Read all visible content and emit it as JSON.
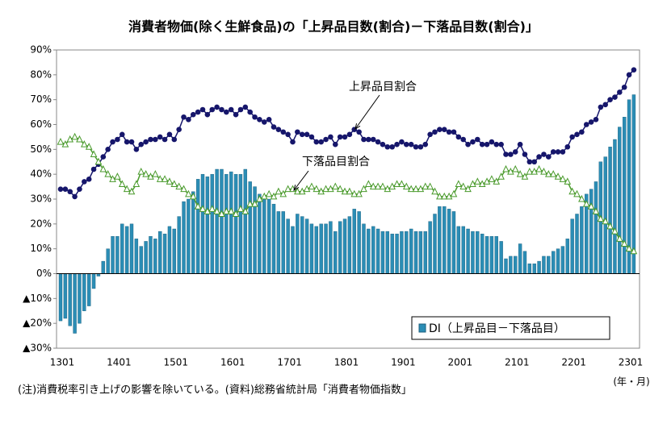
{
  "chart_data": {
    "type": "bar",
    "title": "消費者物価(除く生鮮食品)の「上昇品目数(割合)－下落品目数(割合)」",
    "x_label": "(年・月)",
    "note": "(注)消費税率引き上げの影響を除いている。(資料)総務省統計局「消費者物価指数」",
    "categories": [
      "1301",
      null,
      null,
      null,
      null,
      null,
      null,
      null,
      null,
      null,
      null,
      null,
      "1401",
      null,
      null,
      null,
      null,
      null,
      null,
      null,
      null,
      null,
      null,
      null,
      "1501",
      null,
      null,
      null,
      null,
      null,
      null,
      null,
      null,
      null,
      null,
      null,
      "1601",
      null,
      null,
      null,
      null,
      null,
      null,
      null,
      null,
      null,
      null,
      null,
      "1701",
      null,
      null,
      null,
      null,
      null,
      null,
      null,
      null,
      null,
      null,
      null,
      "1801",
      null,
      null,
      null,
      null,
      null,
      null,
      null,
      null,
      null,
      null,
      null,
      "1901",
      null,
      null,
      null,
      null,
      null,
      null,
      null,
      null,
      null,
      null,
      null,
      "2001",
      null,
      null,
      null,
      null,
      null,
      null,
      null,
      null,
      null,
      null,
      null,
      "2101",
      null,
      null,
      null,
      null,
      null,
      null,
      null,
      null,
      null,
      null,
      null,
      "2201",
      null,
      null,
      null,
      null,
      null,
      null,
      null,
      null,
      null,
      null,
      null,
      "2301",
      null
    ],
    "series": [
      {
        "name": "DI（上昇品目－下落品目）",
        "type": "bar",
        "color": "#2b8db5",
        "values": [
          -19,
          -18,
          -21,
          -24,
          -20,
          -15,
          -13,
          -6,
          -1,
          5,
          10,
          15,
          15,
          20,
          19,
          20,
          14,
          11,
          13,
          15,
          14,
          17,
          16,
          19,
          18,
          23,
          29,
          30,
          33,
          38,
          40,
          39,
          40,
          42,
          42,
          40,
          41,
          40,
          40,
          42,
          37,
          35,
          32,
          30,
          30,
          28,
          25,
          25,
          22,
          19,
          24,
          23,
          22,
          20,
          19,
          20,
          20,
          21,
          17,
          21,
          22,
          23,
          26,
          25,
          20,
          18,
          19,
          18,
          17,
          17,
          16,
          16,
          17,
          17,
          18,
          17,
          17,
          17,
          21,
          24,
          27,
          27,
          26,
          25,
          19,
          19,
          18,
          17,
          17,
          16,
          15,
          15,
          15,
          13,
          6,
          7,
          7,
          12,
          9,
          4,
          4,
          5,
          7,
          7,
          9,
          10,
          11,
          14,
          22,
          24,
          27,
          32,
          34,
          37,
          45,
          47,
          51,
          54,
          59,
          63,
          70,
          72
        ]
      },
      {
        "name": "上昇品目割合",
        "type": "line",
        "marker": "circle",
        "color": "#16166b",
        "values": [
          34,
          34,
          33,
          31,
          34,
          37,
          38,
          42,
          44,
          47,
          50,
          53,
          54,
          56,
          53,
          53,
          50,
          52,
          53,
          54,
          54,
          55,
          54,
          56,
          54,
          58,
          63,
          62,
          64,
          65,
          66,
          64,
          66,
          67,
          66,
          65,
          66,
          64,
          66,
          67,
          65,
          63,
          62,
          61,
          62,
          59,
          58,
          57,
          56,
          53,
          57,
          56,
          56,
          55,
          53,
          53,
          54,
          55,
          52,
          55,
          55,
          56,
          58,
          57,
          54,
          54,
          54,
          53,
          52,
          51,
          51,
          52,
          53,
          52,
          52,
          51,
          51,
          52,
          56,
          57,
          58,
          58,
          57,
          57,
          55,
          54,
          52,
          53,
          54,
          52,
          52,
          53,
          52,
          52,
          48,
          48,
          49,
          52,
          48,
          45,
          45,
          47,
          48,
          47,
          49,
          49,
          49,
          51,
          55,
          56,
          57,
          60,
          61,
          62,
          67,
          68,
          70,
          71,
          73,
          75,
          80,
          82
        ]
      },
      {
        "name": "下落品目割合",
        "type": "line",
        "marker": "triangle",
        "color": "#4a9a2c",
        "values": [
          53,
          52,
          54,
          55,
          54,
          52,
          51,
          48,
          45,
          42,
          40,
          38,
          39,
          36,
          34,
          33,
          36,
          41,
          40,
          39,
          40,
          38,
          38,
          37,
          36,
          35,
          34,
          32,
          31,
          27,
          26,
          25,
          26,
          25,
          24,
          25,
          25,
          24,
          26,
          25,
          28,
          28,
          30,
          31,
          32,
          31,
          33,
          32,
          34,
          34,
          33,
          33,
          34,
          35,
          34,
          33,
          34,
          34,
          35,
          34,
          33,
          33,
          32,
          32,
          34,
          36,
          35,
          35,
          35,
          34,
          35,
          36,
          36,
          35,
          34,
          34,
          34,
          35,
          35,
          33,
          31,
          31,
          31,
          32,
          36,
          35,
          34,
          36,
          37,
          36,
          37,
          38,
          37,
          39,
          42,
          41,
          42,
          40,
          39,
          41,
          41,
          42,
          41,
          40,
          40,
          39,
          38,
          37,
          33,
          32,
          30,
          28,
          27,
          25,
          22,
          21,
          19,
          17,
          14,
          12,
          10,
          9
        ]
      }
    ],
    "ylim": [
      -30,
      90
    ],
    "yticks": [
      {
        "value": -30,
        "label": "▲30%"
      },
      {
        "value": -20,
        "label": "▲20%"
      },
      {
        "value": -10,
        "label": "▲10%"
      },
      {
        "value": 0,
        "label": "0%"
      },
      {
        "value": 10,
        "label": "10%"
      },
      {
        "value": 20,
        "label": "20%"
      },
      {
        "value": 30,
        "label": "30%"
      },
      {
        "value": 40,
        "label": "40%"
      },
      {
        "value": 50,
        "label": "50%"
      },
      {
        "value": 60,
        "label": "60%"
      },
      {
        "value": 70,
        "label": "70%"
      },
      {
        "value": 80,
        "label": "80%"
      },
      {
        "value": 90,
        "label": "90%"
      }
    ]
  }
}
